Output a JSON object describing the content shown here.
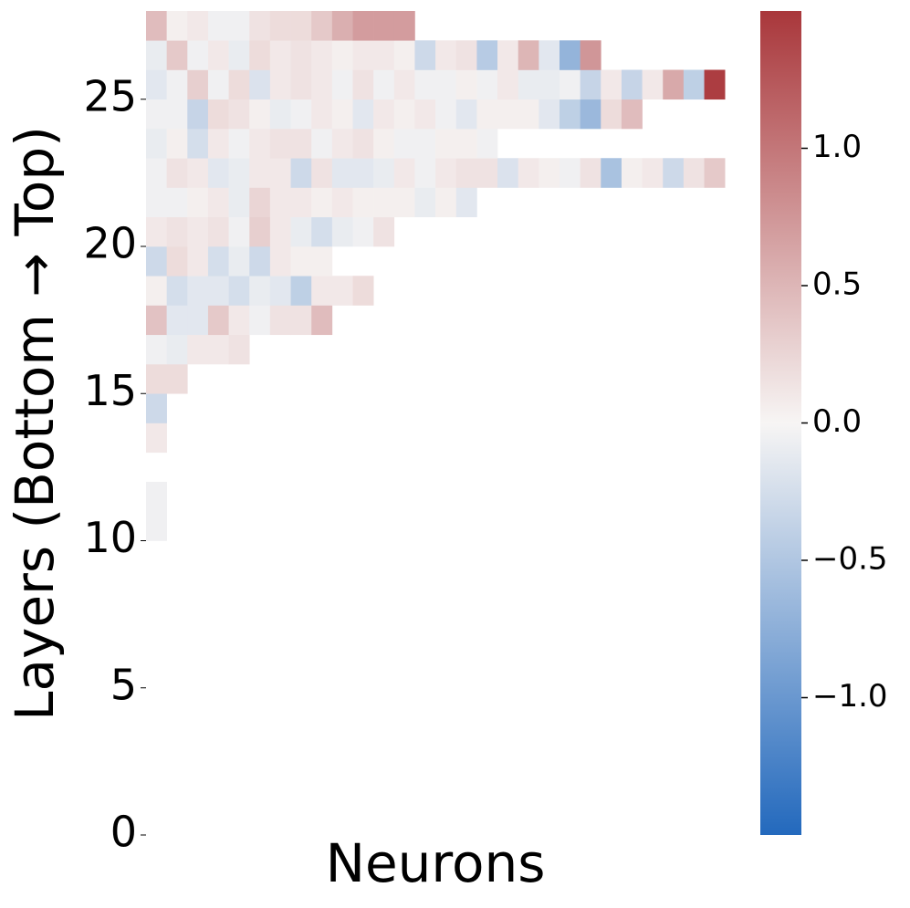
{
  "chart_data": {
    "type": "heatmap",
    "xlabel": "Neurons",
    "ylabel": "Layers (Bottom → Top)",
    "ylim": [
      0,
      28
    ],
    "yticks": [
      0,
      5,
      10,
      15,
      20,
      25
    ],
    "clim": [
      -1.5,
      1.5
    ],
    "cticks": [
      {
        "value": -1.0,
        "label": "−1.0"
      },
      {
        "value": -0.5,
        "label": "−0.5"
      },
      {
        "value": 0.0,
        "label": "0.0"
      },
      {
        "value": 0.5,
        "label": "0.5"
      },
      {
        "value": 1.0,
        "label": "1.0"
      }
    ],
    "colors": [
      "#2369bd",
      "#f7f5f4",
      "#a9373b"
    ],
    "z": [
      [],
      [],
      [],
      [],
      [],
      [],
      [],
      [],
      [],
      [],
      [
        -0.05
      ],
      [
        -0.05
      ],
      [],
      [
        0.1
      ],
      [
        -0.3
      ],
      [
        0.2,
        0.2
      ],
      [
        -0.05,
        -0.1,
        0.1,
        0.1,
        0.15
      ],
      [
        0.4,
        -0.15,
        -0.15,
        0.35,
        0.1,
        -0.05,
        0.15,
        0.15,
        0.45
      ],
      [
        0.05,
        -0.25,
        -0.15,
        -0.15,
        -0.25,
        -0.1,
        -0.15,
        -0.4,
        0.1,
        0.1,
        0.2
      ],
      [
        -0.3,
        0.2,
        0.1,
        -0.25,
        -0.1,
        -0.3,
        0.1,
        0.05,
        0.05
      ],
      [
        0.1,
        0.15,
        0.1,
        0.15,
        -0.05,
        0.3,
        0.1,
        -0.1,
        -0.25,
        -0.1,
        -0.05,
        0.15
      ],
      [
        -0.05,
        -0.05,
        0.05,
        0.1,
        -0.1,
        0.25,
        0.1,
        0.1,
        0.05,
        0.1,
        0.05,
        0.05,
        0.05,
        -0.1,
        0.05,
        -0.15
      ],
      [
        -0.05,
        0.15,
        0.1,
        -0.15,
        -0.1,
        0.1,
        0.1,
        -0.3,
        0.15,
        -0.15,
        -0.15,
        -0.1,
        0.1,
        -0.05,
        0.1,
        0.15,
        0.15,
        -0.2,
        0.1,
        0.05,
        -0.05,
        0.15,
        -0.55,
        0.05,
        0.1,
        -0.3,
        0.15,
        0.35
      ],
      [
        -0.1,
        0.05,
        -0.25,
        0.1,
        -0.05,
        0.1,
        0.15,
        0.15,
        -0.05,
        0.1,
        0.15,
        0.05,
        -0.05,
        -0.05,
        0.05,
        0.05,
        -0.05
      ],
      [
        -0.05,
        -0.05,
        -0.35,
        0.2,
        0.15,
        0.05,
        -0.1,
        -0.05,
        0.1,
        0.05,
        -0.15,
        0.1,
        0.05,
        0.1,
        -0.05,
        -0.15,
        0.05,
        0.05,
        0.05,
        -0.15,
        -0.4,
        -0.65,
        0.2,
        0.45
      ],
      [
        -0.15,
        -0.05,
        0.3,
        -0.05,
        0.2,
        -0.2,
        0.1,
        0.15,
        0.1,
        -0.05,
        0.15,
        -0.05,
        0.1,
        -0.05,
        -0.05,
        0.05,
        -0.05,
        0.1,
        -0.1,
        -0.1,
        -0.05,
        -0.35,
        0.1,
        -0.35,
        0.1,
        0.6,
        -0.4,
        1.45
      ],
      [
        -0.1,
        0.35,
        -0.05,
        0.1,
        -0.1,
        0.2,
        0.1,
        0.15,
        0.1,
        0.05,
        0.1,
        0.1,
        0.05,
        -0.3,
        0.1,
        0.15,
        -0.45,
        0.1,
        0.5,
        -0.15,
        -0.7,
        0.75
      ],
      [
        0.45,
        0.05,
        0.1,
        -0.05,
        -0.05,
        0.15,
        0.2,
        0.2,
        0.35,
        0.55,
        0.7,
        0.7,
        0.7
      ]
    ]
  }
}
